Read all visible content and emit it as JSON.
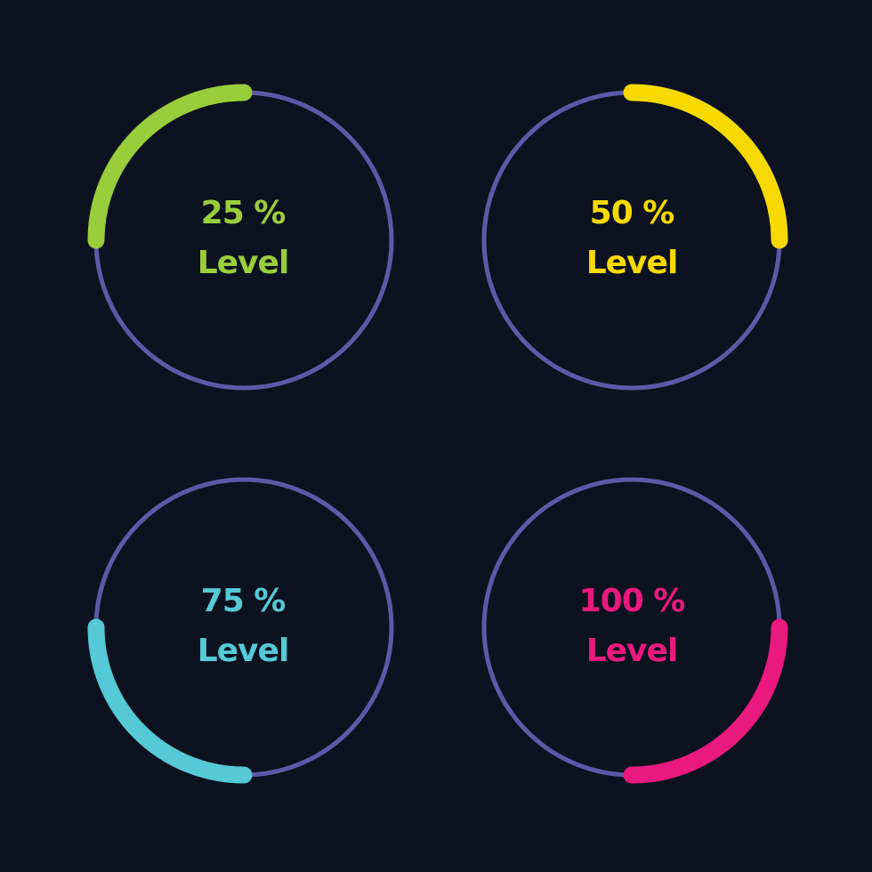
{
  "ring_color": "#5b5aa6",
  "background": "#0d1220",
  "gauges": [
    {
      "percent_text": "25 %",
      "level_text": "Level",
      "value": 25,
      "color": "#9acd3c",
      "arc_start_clock": 9
    },
    {
      "percent_text": "50 %",
      "level_text": "Level",
      "value": 50,
      "color": "#f6d900",
      "arc_start_clock": 12
    },
    {
      "percent_text": "75 %",
      "level_text": "Level",
      "value": 75,
      "color": "#55c9d6",
      "arc_start_clock": 6
    },
    {
      "percent_text": "100 %",
      "level_text": "Level",
      "value": 100,
      "color": "#e9197e",
      "arc_start_clock": 3
    }
  ]
}
